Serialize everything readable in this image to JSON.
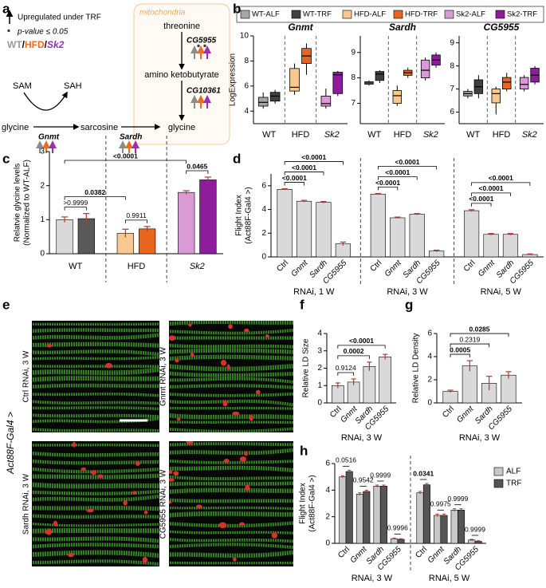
{
  "figure": {
    "panel_labels": [
      "a",
      "b",
      "c",
      "d",
      "e",
      "f",
      "g",
      "h"
    ]
  },
  "diagram": {
    "legend_up": "Upregulated under TRF",
    "star": "*",
    "legend_p": "p-value ≤ 0.05",
    "genotypes": [
      "WT",
      "HFD",
      "Sk2"
    ],
    "separator": "/",
    "compartment": "mitochondria",
    "nodes": [
      "SAM",
      "SAH",
      "glycine",
      "sarcosine",
      "glycine",
      "threonine",
      "amino ketobutyrate"
    ],
    "enzymes": [
      "Gnmt",
      "Sardh",
      "CG5955",
      "CG10361"
    ]
  },
  "images": {
    "driver": "Act88F-Gal4 >",
    "panels": [
      "Ctrl RNAi, 3 W",
      "Gnmt RNAi, 3 W",
      "Sardh RNAi, 3 W",
      "CG5955 RNAi, 3 W"
    ]
  },
  "chart_data": [
    {
      "type": "box",
      "title": "Gnmt",
      "ylabel": "LogExpression",
      "ylim": [
        3,
        10
      ],
      "yticks": [
        4,
        6,
        8,
        10
      ],
      "categories": [
        "WT",
        "HFD",
        "Sk2"
      ],
      "italic_categories": [
        false,
        false,
        true
      ],
      "series": [
        {
          "name": "WT-ALF",
          "color": "#a6a6a6",
          "values": [
            4.2,
            4.4,
            4.7,
            5.1,
            5.5
          ]
        },
        {
          "name": "WT-TRF",
          "color": "#404040",
          "values": [
            4.6,
            4.8,
            5.2,
            5.5,
            5.7
          ]
        },
        {
          "name": "HFD-ALF",
          "color": "#f9c78f",
          "values": [
            5.3,
            5.6,
            5.9,
            7.4,
            7.8
          ]
        },
        {
          "name": "HFD-TRF",
          "color": "#e8651d",
          "values": [
            6.9,
            7.8,
            8.4,
            9.0,
            9.4
          ]
        },
        {
          "name": "Sk2-ALF",
          "color": "#d99ad6",
          "values": [
            4.2,
            4.4,
            4.6,
            5.2,
            5.8
          ]
        },
        {
          "name": "Sk2-TRF",
          "color": "#8f1c9f",
          "values": [
            5.2,
            5.4,
            6.9,
            7.1,
            7.2
          ]
        }
      ]
    },
    {
      "type": "box",
      "title": "Sardh",
      "ylim": [
        6.2,
        9.65
      ],
      "yticks": [
        7,
        8,
        9
      ],
      "categories": [
        "WT",
        "HFD",
        "Sk2"
      ],
      "italic_categories": [
        false,
        false,
        true
      ],
      "series": [
        {
          "color": "#a6a6a6",
          "values": [
            7.7,
            7.75,
            7.8,
            7.85,
            7.9
          ]
        },
        {
          "color": "#404040",
          "values": [
            7.8,
            7.9,
            8.15,
            8.25,
            8.3
          ]
        },
        {
          "color": "#f9c78f",
          "values": [
            6.9,
            7.0,
            7.3,
            7.5,
            7.7
          ]
        },
        {
          "color": "#e8651d",
          "values": [
            8.0,
            8.1,
            8.2,
            8.3,
            8.4
          ]
        },
        {
          "color": "#d99ad6",
          "values": [
            7.9,
            8.0,
            8.3,
            8.7,
            8.8
          ]
        },
        {
          "color": "#8f1c9f",
          "values": [
            8.4,
            8.5,
            8.7,
            8.9,
            9.0
          ]
        }
      ]
    },
    {
      "type": "box",
      "title": "CG5955",
      "ylim": [
        5.5,
        9.3
      ],
      "yticks": [
        6,
        7,
        8,
        9
      ],
      "categories": [
        "WT",
        "HFD",
        "Sk2"
      ],
      "italic_categories": [
        false,
        false,
        true
      ],
      "series": [
        {
          "color": "#a6a6a6",
          "values": [
            6.6,
            6.7,
            6.8,
            6.9,
            7.0
          ]
        },
        {
          "color": "#404040",
          "values": [
            6.6,
            6.8,
            7.1,
            7.4,
            7.6
          ]
        },
        {
          "color": "#f9c78f",
          "values": [
            5.9,
            6.4,
            6.8,
            7.0,
            7.1
          ]
        },
        {
          "color": "#e8651d",
          "values": [
            6.9,
            7.0,
            7.3,
            7.5,
            7.7
          ]
        },
        {
          "color": "#d99ad6",
          "values": [
            6.9,
            7.0,
            7.2,
            7.5,
            7.6
          ]
        },
        {
          "color": "#8f1c9f",
          "values": [
            7.2,
            7.3,
            7.6,
            7.9,
            8.0
          ]
        }
      ]
    },
    {
      "type": "bar",
      "ylabel": "Relatvie glycine levels",
      "ylabel2": "(Normalized to WT-ALF)",
      "ylim": [
        0,
        3
      ],
      "yticks": [
        0,
        1,
        2,
        3
      ],
      "groups": [
        {
          "label": "WT",
          "bars": [
            {
              "value": 1.0,
              "error": 0.08,
              "color": "#d9d9d9"
            },
            {
              "value": 1.03,
              "error": 0.15,
              "color": "#595959"
            }
          ]
        },
        {
          "label": "HFD",
          "bars": [
            {
              "value": 0.6,
              "error": 0.12,
              "color": "#f9c78f"
            },
            {
              "value": 0.73,
              "error": 0.07,
              "color": "#e8651d"
            }
          ]
        },
        {
          "label": "Sk2",
          "italic": true,
          "bars": [
            {
              "value": 1.8,
              "error": 0.05,
              "color": "#d99ad6"
            },
            {
              "value": 2.17,
              "error": 0.08,
              "color": "#8f1c9f"
            }
          ]
        }
      ],
      "annotations": [
        {
          "text": ">0.9999",
          "between": [
            0,
            1
          ]
        },
        {
          "text": "0.9911",
          "between": [
            2,
            3
          ]
        },
        {
          "text": "0.0465",
          "between": [
            4,
            5
          ],
          "bold": true
        },
        {
          "text": "0.0382",
          "between": [
            0,
            2
          ],
          "bold": true
        },
        {
          "text": "<0.0001",
          "between": [
            0,
            4
          ],
          "bold": true
        }
      ]
    },
    {
      "type": "bar",
      "ylabel": "Flight Index",
      "ylabel2": "(Act88F-Gal4 >)",
      "ylim": [
        0,
        7
      ],
      "yticks": [
        0,
        2,
        4,
        6
      ],
      "groups": [
        {
          "label": "RNAi, 1 W",
          "bars": [
            {
              "category": "Ctrl",
              "value": 5.7,
              "error": 0.05,
              "color": "#d9d9d9"
            },
            {
              "category": "Gnmt",
              "italic": true,
              "value": 4.7,
              "error": 0.07,
              "color": "#d9d9d9"
            },
            {
              "category": "Sardh",
              "italic": true,
              "value": 4.6,
              "error": 0.07,
              "color": "#d9d9d9"
            },
            {
              "category": "CG5955",
              "italic": true,
              "value": 1.1,
              "error": 0.15,
              "color": "#d9d9d9"
            }
          ]
        },
        {
          "label": "RNAi, 3 W",
          "bars": [
            {
              "category": "Ctrl",
              "value": 5.3,
              "error": 0.05,
              "color": "#d9d9d9"
            },
            {
              "category": "Gnmt",
              "italic": true,
              "value": 3.3,
              "error": 0.06,
              "color": "#d9d9d9"
            },
            {
              "category": "Sardh",
              "italic": true,
              "value": 3.6,
              "error": 0.06,
              "color": "#d9d9d9"
            },
            {
              "category": "CG5955",
              "italic": true,
              "value": 0.5,
              "error": 0.07,
              "color": "#d9d9d9"
            }
          ]
        },
        {
          "label": "RNAi, 5 W",
          "bars": [
            {
              "category": "Ctrl",
              "value": 3.9,
              "error": 0.08,
              "color": "#d9d9d9"
            },
            {
              "category": "Gnmt",
              "italic": true,
              "value": 1.9,
              "error": 0.07,
              "color": "#d9d9d9"
            },
            {
              "category": "Sardh",
              "italic": true,
              "value": 1.9,
              "error": 0.07,
              "color": "#d9d9d9"
            },
            {
              "category": "CG5955",
              "italic": true,
              "value": 0.2,
              "error": 0.05,
              "color": "#d9d9d9"
            }
          ]
        }
      ],
      "annotations": [
        {
          "text": "<0.0001",
          "between": [
            0,
            1
          ],
          "bold": true
        },
        {
          "text": "<0.0001",
          "between": [
            0,
            2
          ],
          "bold": true
        },
        {
          "text": "<0.0001",
          "between": [
            0,
            3
          ],
          "bold": true
        },
        {
          "text": "<0.0001",
          "between": [
            4,
            5
          ],
          "bold": true
        },
        {
          "text": "<0.0001",
          "between": [
            4,
            6
          ],
          "bold": true
        },
        {
          "text": "<0.0001",
          "between": [
            4,
            7
          ],
          "bold": true
        },
        {
          "text": "<0.0001",
          "between": [
            8,
            9
          ],
          "bold": true
        },
        {
          "text": "<0.0001",
          "between": [
            8,
            10
          ],
          "bold": true
        },
        {
          "text": "<0.0001",
          "between": [
            8,
            11
          ],
          "bold": true
        }
      ]
    },
    {
      "type": "bar",
      "ylabel": "Relative LD Size",
      "xlabel": "RNAi, 3 W",
      "ylim": [
        0,
        4
      ],
      "yticks": [
        0,
        1,
        2,
        3,
        4
      ],
      "groups": [
        {
          "bars": [
            {
              "category": "Ctrl",
              "value": 1.0,
              "error": 0.15,
              "color": "#d9d9d9"
            },
            {
              "category": "Gnmt",
              "italic": true,
              "value": 1.2,
              "error": 0.18,
              "color": "#d9d9d9"
            },
            {
              "category": "Sardh",
              "italic": true,
              "value": 2.1,
              "error": 0.25,
              "color": "#d9d9d9"
            },
            {
              "category": "CG5955",
              "italic": true,
              "value": 2.65,
              "error": 0.15,
              "color": "#d9d9d9"
            }
          ]
        }
      ],
      "annotations": [
        {
          "text": "0.9124",
          "between": [
            0,
            1
          ]
        },
        {
          "text": "0.0002",
          "between": [
            0,
            2
          ],
          "bold": true
        },
        {
          "text": "<0.0001",
          "between": [
            0,
            3
          ],
          "bold": true
        }
      ]
    },
    {
      "type": "bar",
      "ylabel": "Relative LD Density",
      "xlabel": "RNAi, 3 W",
      "ylim": [
        0,
        6
      ],
      "yticks": [
        0,
        2,
        4,
        6
      ],
      "groups": [
        {
          "bars": [
            {
              "category": "Ctrl",
              "value": 1.0,
              "error": 0.1,
              "color": "#d9d9d9"
            },
            {
              "category": "Gnmt",
              "italic": true,
              "value": 3.2,
              "error": 0.45,
              "color": "#d9d9d9"
            },
            {
              "category": "Sardh",
              "italic": true,
              "value": 1.7,
              "error": 0.6,
              "color": "#d9d9d9"
            },
            {
              "category": "CG5955",
              "italic": true,
              "value": 2.4,
              "error": 0.3,
              "color": "#d9d9d9"
            }
          ]
        }
      ],
      "annotations": [
        {
          "text": "0.0005",
          "between": [
            0,
            1
          ],
          "bold": true
        },
        {
          "text": "0.2319",
          "between": [
            0,
            2
          ]
        },
        {
          "text": "0.0285",
          "between": [
            0,
            3
          ],
          "bold": true
        }
      ]
    },
    {
      "type": "grouped_bar",
      "ylabel": "Flight Index",
      "ylabel2": "(Act88F-Gal4 >)",
      "ylim": [
        0,
        6
      ],
      "yticks": [
        0,
        2,
        4,
        6
      ],
      "series": [
        {
          "name": "ALF",
          "color": "#c8c8c8"
        },
        {
          "name": "TRF",
          "color": "#555555"
        }
      ],
      "groups": [
        {
          "label": "RNAi, 3 W",
          "clusters": [
            {
              "category": "Ctrl",
              "values": [
                5.0,
                5.4
              ],
              "errors": [
                0.08,
                0.1
              ],
              "p": "0.0516"
            },
            {
              "category": "Gnmt",
              "italic": true,
              "values": [
                3.7,
                3.9
              ],
              "errors": [
                0.1,
                0.1
              ],
              "p": "0.9542"
            },
            {
              "category": "Sardh",
              "italic": true,
              "values": [
                4.3,
                4.3
              ],
              "errors": [
                0.08,
                0.08
              ],
              "p": "0.9999"
            },
            {
              "category": "CG5955",
              "italic": true,
              "values": [
                0.35,
                0.3
              ],
              "errors": [
                0.05,
                0.05
              ],
              "p": "0.9996"
            }
          ]
        },
        {
          "label": "RNAi, 5 W",
          "clusters": [
            {
              "category": "Ctrl",
              "values": [
                3.8,
                4.4
              ],
              "errors": [
                0.1,
                0.1
              ],
              "p": "0.0341",
              "bold": true
            },
            {
              "category": "Gnmt",
              "italic": true,
              "values": [
                2.1,
                2.1
              ],
              "errors": [
                0.1,
                0.1
              ],
              "p": "0.9975"
            },
            {
              "category": "Sardh",
              "italic": true,
              "values": [
                2.5,
                2.5
              ],
              "errors": [
                0.1,
                0.1
              ],
              "p": "0.9999"
            },
            {
              "category": "CG5955",
              "italic": true,
              "values": [
                0.25,
                0.15
              ],
              "errors": [
                0.05,
                0.05
              ],
              "p": "0.9999"
            }
          ]
        }
      ]
    }
  ]
}
